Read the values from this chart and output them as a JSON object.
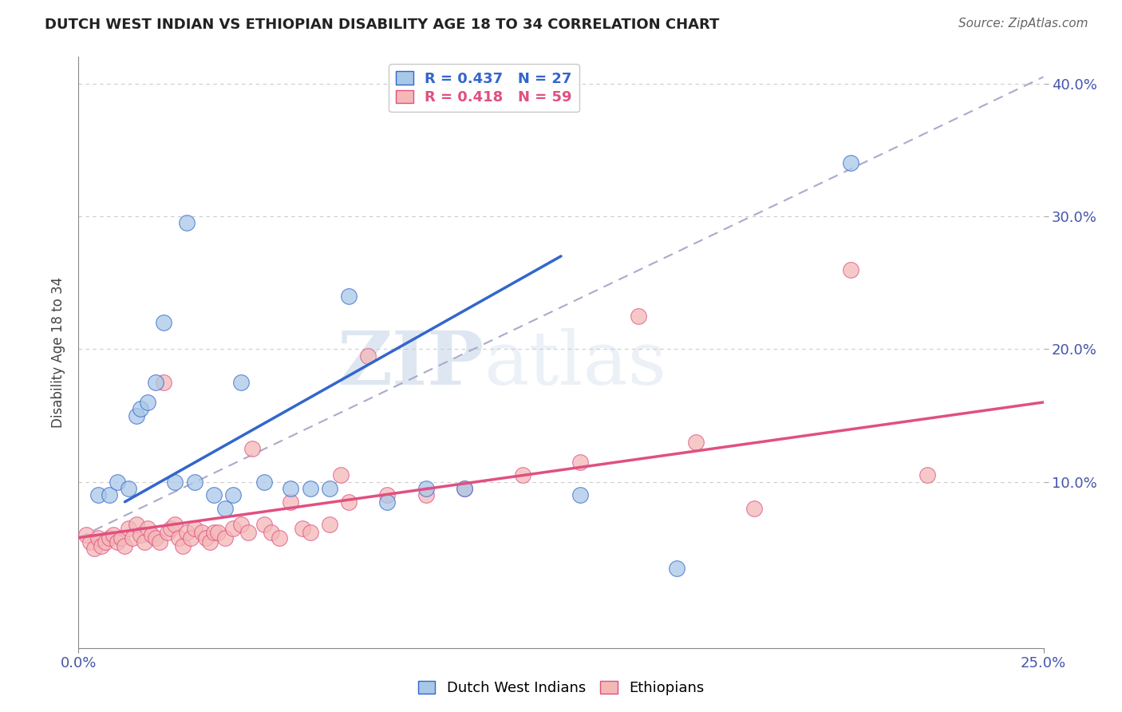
{
  "title": "DUTCH WEST INDIAN VS ETHIOPIAN DISABILITY AGE 18 TO 34 CORRELATION CHART",
  "source": "Source: ZipAtlas.com",
  "ylabel": "Disability Age 18 to 34",
  "xlim": [
    0.0,
    0.25
  ],
  "ylim": [
    -0.025,
    0.42
  ],
  "ytick_values": [
    0.1,
    0.2,
    0.3,
    0.4
  ],
  "ytick_labels": [
    "10.0%",
    "20.0%",
    "30.0%",
    "40.0%"
  ],
  "legend1_text": "R = 0.437   N = 27",
  "legend2_text": "R = 0.418   N = 59",
  "dwi_color": "#a8c8e8",
  "eth_color": "#f4b8b8",
  "dwi_line_color": "#3366cc",
  "eth_line_color": "#e05080",
  "dashed_line_color": "#aaaacc",
  "watermark_zip": "ZIP",
  "watermark_atlas": "atlas",
  "dutch_west_indian_x": [
    0.005,
    0.008,
    0.01,
    0.013,
    0.015,
    0.016,
    0.018,
    0.02,
    0.022,
    0.025,
    0.028,
    0.03,
    0.035,
    0.038,
    0.04,
    0.042,
    0.048,
    0.055,
    0.06,
    0.065,
    0.07,
    0.08,
    0.09,
    0.1,
    0.13,
    0.155,
    0.2
  ],
  "dutch_west_indian_y": [
    0.09,
    0.09,
    0.1,
    0.095,
    0.15,
    0.155,
    0.16,
    0.175,
    0.22,
    0.1,
    0.295,
    0.1,
    0.09,
    0.08,
    0.09,
    0.175,
    0.1,
    0.095,
    0.095,
    0.095,
    0.24,
    0.085,
    0.095,
    0.095,
    0.09,
    0.035,
    0.34
  ],
  "ethiopian_x": [
    0.002,
    0.003,
    0.004,
    0.005,
    0.006,
    0.007,
    0.008,
    0.009,
    0.01,
    0.011,
    0.012,
    0.013,
    0.014,
    0.015,
    0.016,
    0.017,
    0.018,
    0.019,
    0.02,
    0.021,
    0.022,
    0.023,
    0.024,
    0.025,
    0.026,
    0.027,
    0.028,
    0.029,
    0.03,
    0.032,
    0.033,
    0.034,
    0.035,
    0.036,
    0.038,
    0.04,
    0.042,
    0.044,
    0.045,
    0.048,
    0.05,
    0.052,
    0.055,
    0.058,
    0.06,
    0.065,
    0.068,
    0.07,
    0.075,
    0.08,
    0.09,
    0.1,
    0.115,
    0.13,
    0.145,
    0.16,
    0.175,
    0.2,
    0.22
  ],
  "ethiopian_y": [
    0.06,
    0.055,
    0.05,
    0.058,
    0.052,
    0.055,
    0.058,
    0.06,
    0.055,
    0.058,
    0.052,
    0.065,
    0.058,
    0.068,
    0.06,
    0.055,
    0.065,
    0.06,
    0.058,
    0.055,
    0.175,
    0.062,
    0.065,
    0.068,
    0.058,
    0.052,
    0.062,
    0.058,
    0.065,
    0.062,
    0.058,
    0.055,
    0.062,
    0.062,
    0.058,
    0.065,
    0.068,
    0.062,
    0.125,
    0.068,
    0.062,
    0.058,
    0.085,
    0.065,
    0.062,
    0.068,
    0.105,
    0.085,
    0.195,
    0.09,
    0.09,
    0.095,
    0.105,
    0.115,
    0.225,
    0.13,
    0.08,
    0.26,
    0.105
  ],
  "dwi_line_x": [
    0.012,
    0.125
  ],
  "dwi_line_y": [
    0.085,
    0.27
  ],
  "eth_line_x": [
    0.0,
    0.25
  ],
  "eth_line_y": [
    0.058,
    0.16
  ],
  "dash_line_x": [
    0.0,
    0.25
  ],
  "dash_line_y": [
    0.058,
    0.405
  ]
}
